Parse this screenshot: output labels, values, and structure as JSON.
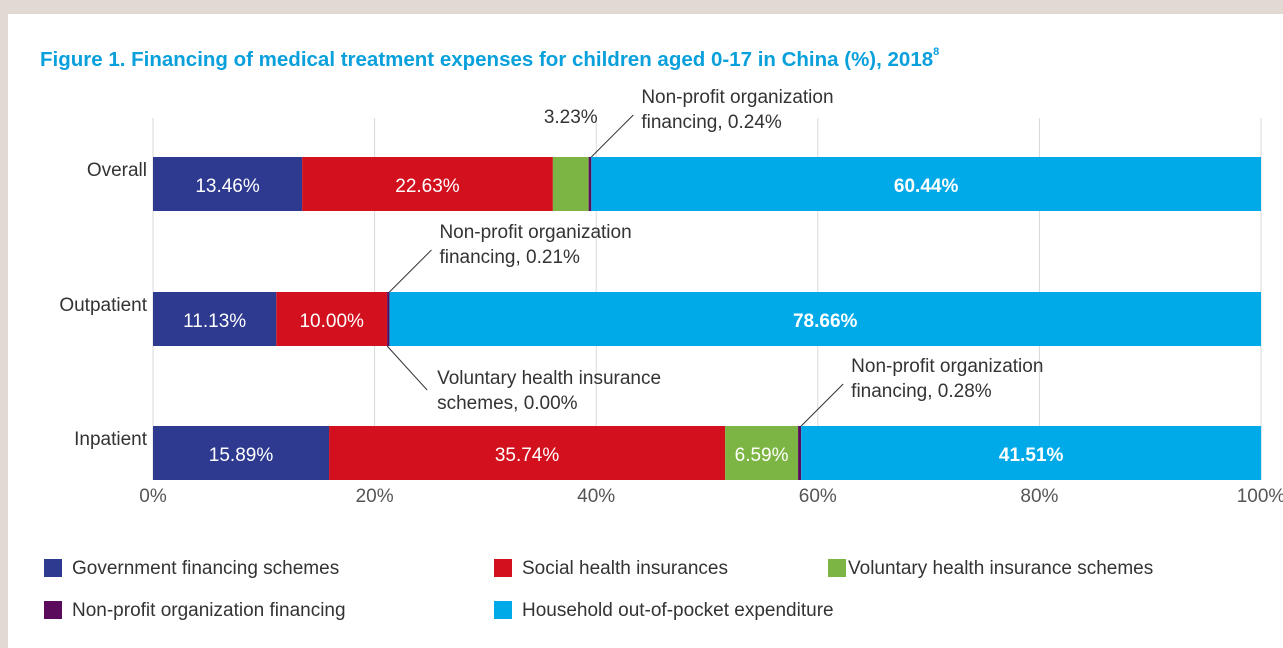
{
  "chart_data": {
    "type": "stacked-barh",
    "title": "Figure 1. Financing of medical treatment expenses for children aged 0-17 in China (%), 2018",
    "title_superscript": "8",
    "categories": [
      "Overall",
      "Outpatient",
      "Inpatient"
    ],
    "series": [
      {
        "name": "Government financing schemes",
        "color": "#2e3a8f",
        "values": [
          13.46,
          11.13,
          15.89
        ],
        "value_labels": [
          "13.46%",
          "11.13%",
          "15.89%"
        ]
      },
      {
        "name": "Social health insurances",
        "color": "#d2101e",
        "values": [
          22.63,
          10.0,
          35.74
        ],
        "value_labels": [
          "22.63%",
          "10.00%",
          "35.74%"
        ]
      },
      {
        "name": "Voluntary health insurance schemes",
        "color": "#7cb544",
        "values": [
          3.23,
          0.0,
          6.59
        ],
        "value_labels": [
          "3.23%",
          "Voluntary health insurance\nschemes, 0.00%",
          "6.59%"
        ]
      },
      {
        "name": "Non-profit organization financing",
        "color": "#5a0b5c",
        "values": [
          0.24,
          0.21,
          0.28
        ],
        "value_labels": [
          "Non-profit organization\nfinancing, 0.24%",
          "Non-profit organization\nfinancing, 0.21%",
          "Non-profit organization\nfinancing, 0.28%"
        ]
      },
      {
        "name": "Household out-of-pocket expenditure",
        "color": "#00aae9",
        "values": [
          60.44,
          78.66,
          41.51
        ],
        "value_labels": [
          "60.44%",
          "78.66%",
          "41.51%"
        ]
      }
    ],
    "xlim": [
      0,
      100
    ],
    "xticks": [
      {
        "value": 0,
        "label": "0%"
      },
      {
        "value": 20,
        "label": "20%"
      },
      {
        "value": 40,
        "label": "40%"
      },
      {
        "value": 60,
        "label": "60%"
      },
      {
        "value": 80,
        "label": "80%"
      },
      {
        "value": 100,
        "label": "100%"
      }
    ],
    "grid": true
  }
}
